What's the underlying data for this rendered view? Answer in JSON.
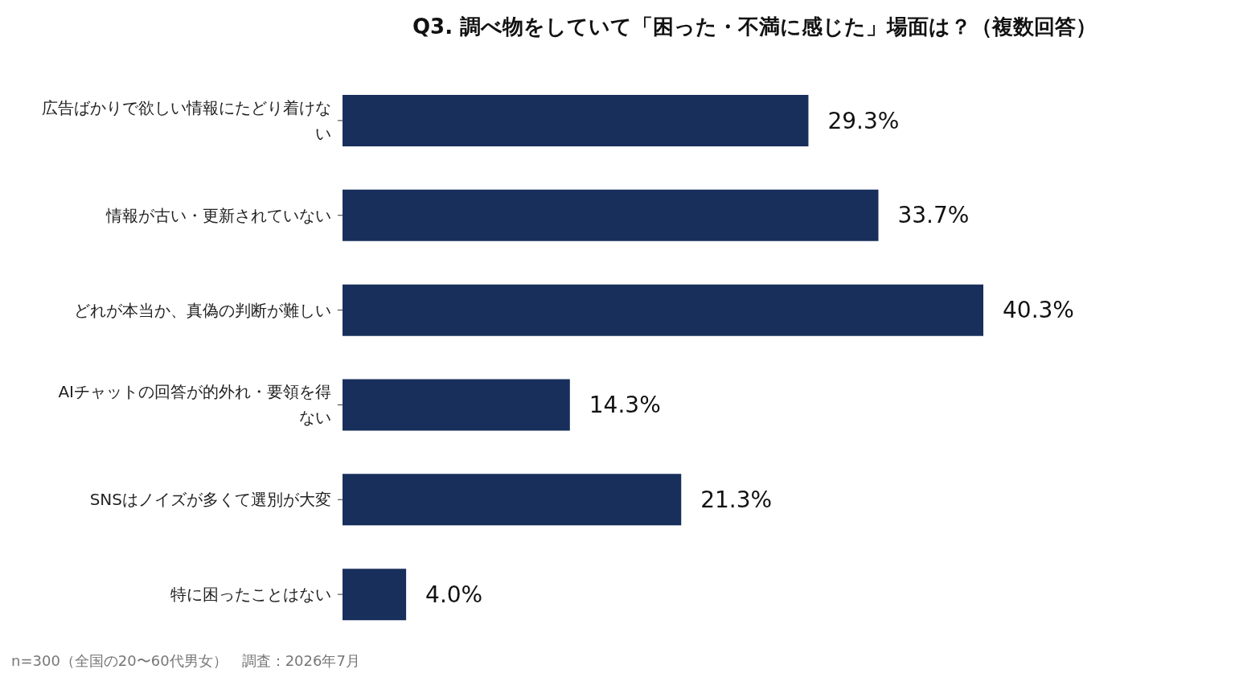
{
  "chart_data": {
    "type": "bar",
    "orientation": "horizontal",
    "title": "Q3. 調べ物をしていて「困った・不満に感じた」場面は？（複数回答）",
    "categories": [
      "広告ばかりで欲しい情報にたどり着けない",
      "情報が古い・更新されていない",
      "どれが本当か、真偽の判断が難しい",
      "AIチャットの回答が的外れ・要領を得ない",
      "SNSはノイズが多くて選別が大変",
      "特に困ったことはない"
    ],
    "values": [
      29.3,
      33.7,
      40.3,
      14.3,
      21.3,
      4.0
    ],
    "value_labels": [
      "29.3%",
      "33.7%",
      "40.3%",
      "14.3%",
      "21.3%",
      "4.0%"
    ],
    "color": "#182f5b",
    "grid": false,
    "legend": false,
    "tick_labels": "y",
    "annotations": [
      "n=300（全国の20〜60代男女）　調査：2026年7月"
    ]
  }
}
